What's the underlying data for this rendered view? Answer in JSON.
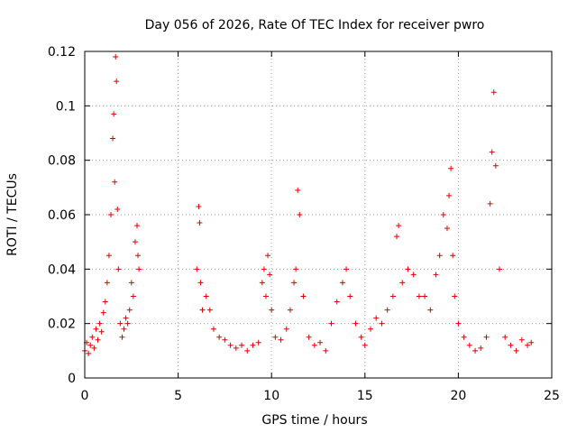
{
  "chart_data": {
    "type": "scatter",
    "title": "Day 056 of 2026, Rate Of TEC Index for receiver pwro",
    "xlabel": "GPS time / hours",
    "ylabel": "ROTI / TECUs",
    "xlim": [
      0,
      25
    ],
    "ylim": [
      0,
      0.12
    ],
    "x_ticks": [
      0,
      5,
      10,
      15,
      20,
      25
    ],
    "y_ticks": [
      0,
      0.02,
      0.04,
      0.06,
      0.08,
      0.1,
      0.12
    ],
    "x_tick_labels": [
      "0",
      "5",
      "10",
      "15",
      "20",
      "25"
    ],
    "y_tick_labels": [
      "0",
      "0.02",
      "0.04",
      "0.06",
      "0.08",
      "0.1",
      "0.12"
    ],
    "grid": true,
    "legend": "none",
    "marker": "plus",
    "marker_color": "#e00000",
    "series": [
      {
        "x": [
          0.0,
          0.1,
          0.2,
          0.3,
          0.4,
          0.5,
          0.6,
          0.7,
          0.8,
          0.9,
          1.0,
          1.1,
          1.2,
          1.3,
          1.4,
          1.5,
          1.55,
          1.6,
          1.65,
          1.7,
          1.75,
          1.8,
          1.9,
          2.0,
          2.1,
          2.2,
          2.3,
          2.4,
          2.5,
          2.6,
          2.7,
          2.8,
          2.85,
          2.9,
          6.0,
          6.1,
          6.15,
          6.2,
          6.3,
          6.5,
          6.7,
          6.9,
          7.2,
          7.5,
          7.8,
          8.1,
          8.4,
          8.7,
          9.0,
          9.3,
          9.5,
          9.6,
          9.7,
          9.8,
          9.9,
          10.0,
          10.2,
          10.5,
          10.8,
          11.0,
          11.2,
          11.3,
          11.4,
          11.5,
          11.7,
          12.0,
          12.3,
          12.6,
          12.9,
          13.2,
          13.5,
          13.8,
          14.0,
          14.2,
          14.5,
          14.8,
          15.0,
          15.3,
          15.6,
          15.9,
          16.2,
          16.5,
          16.7,
          16.8,
          17.0,
          17.3,
          17.6,
          17.9,
          18.2,
          18.5,
          18.8,
          19.0,
          19.2,
          19.4,
          19.5,
          19.6,
          19.7,
          19.8,
          20.0,
          20.3,
          20.6,
          20.9,
          21.2,
          21.5,
          21.7,
          21.8,
          21.9,
          22.0,
          22.2,
          22.5,
          22.8,
          23.1,
          23.4,
          23.7,
          23.9
        ],
        "y": [
          0.01,
          0.013,
          0.009,
          0.012,
          0.015,
          0.011,
          0.018,
          0.014,
          0.02,
          0.017,
          0.024,
          0.028,
          0.035,
          0.045,
          0.06,
          0.088,
          0.097,
          0.072,
          0.118,
          0.109,
          0.062,
          0.04,
          0.02,
          0.015,
          0.018,
          0.022,
          0.02,
          0.025,
          0.035,
          0.03,
          0.05,
          0.056,
          0.045,
          0.04,
          0.04,
          0.063,
          0.057,
          0.035,
          0.025,
          0.03,
          0.025,
          0.018,
          0.015,
          0.014,
          0.012,
          0.011,
          0.012,
          0.01,
          0.012,
          0.013,
          0.035,
          0.04,
          0.03,
          0.045,
          0.038,
          0.025,
          0.015,
          0.014,
          0.018,
          0.025,
          0.035,
          0.04,
          0.069,
          0.06,
          0.03,
          0.015,
          0.012,
          0.013,
          0.01,
          0.02,
          0.028,
          0.035,
          0.04,
          0.03,
          0.02,
          0.015,
          0.012,
          0.018,
          0.022,
          0.02,
          0.025,
          0.03,
          0.052,
          0.056,
          0.035,
          0.04,
          0.038,
          0.03,
          0.03,
          0.025,
          0.038,
          0.045,
          0.06,
          0.055,
          0.067,
          0.077,
          0.045,
          0.03,
          0.02,
          0.015,
          0.012,
          0.01,
          0.011,
          0.015,
          0.064,
          0.083,
          0.105,
          0.078,
          0.04,
          0.015,
          0.012,
          0.01,
          0.014,
          0.012,
          0.013
        ]
      }
    ]
  }
}
